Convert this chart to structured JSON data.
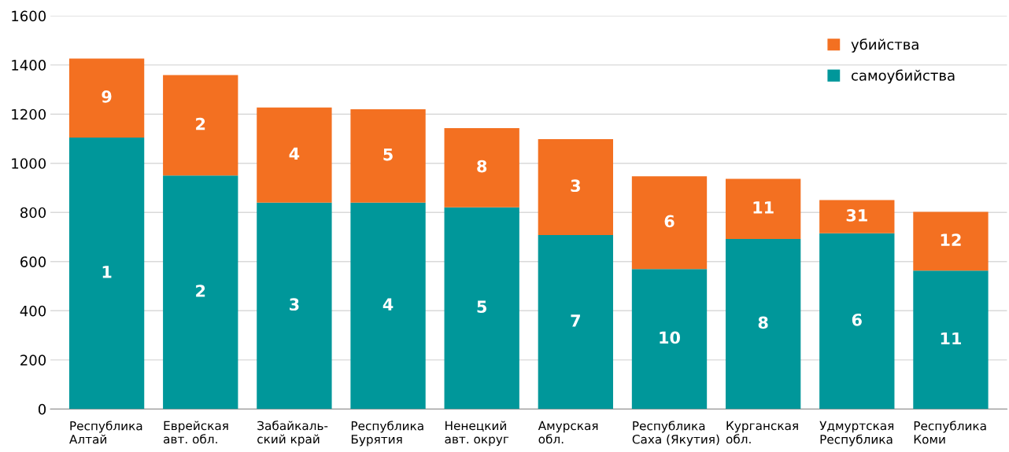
{
  "chart_data": {
    "type": "bar",
    "stacked": true,
    "categories": [
      "Республика\nАлтай",
      "Еврейская\nавт. обл.",
      "Забайкаль-\nский край",
      "Республика\nБурятия",
      "Ненецкий\nавт. округ",
      "Амурская\nобл.",
      "Республика\nСаха (Якутия)",
      "Курганская\nобл.",
      "Удмуртская\nРеспублика",
      "Республика\nКоми"
    ],
    "series": [
      {
        "name": "самоубийства",
        "color": "#00979a",
        "values": [
          1105,
          950,
          840,
          840,
          821,
          708,
          570,
          692,
          715,
          563
        ]
      },
      {
        "name": "убийства",
        "color": "#f37021",
        "values": [
          321,
          409,
          387,
          380,
          322,
          390,
          377,
          245,
          135,
          239
        ]
      }
    ],
    "annotations": [
      "9",
      "1",
      "2",
      "2",
      "4",
      "3",
      "5",
      "4",
      "8",
      "5",
      "3",
      "7",
      "6",
      "10",
      "11",
      "8",
      "31",
      "6",
      "12",
      "11"
    ],
    "ylim": [
      0,
      1600
    ],
    "yticks": [
      0,
      200,
      400,
      600,
      800,
      1000,
      1200,
      1400,
      1600
    ],
    "grid": "y",
    "legend": "top right"
  }
}
